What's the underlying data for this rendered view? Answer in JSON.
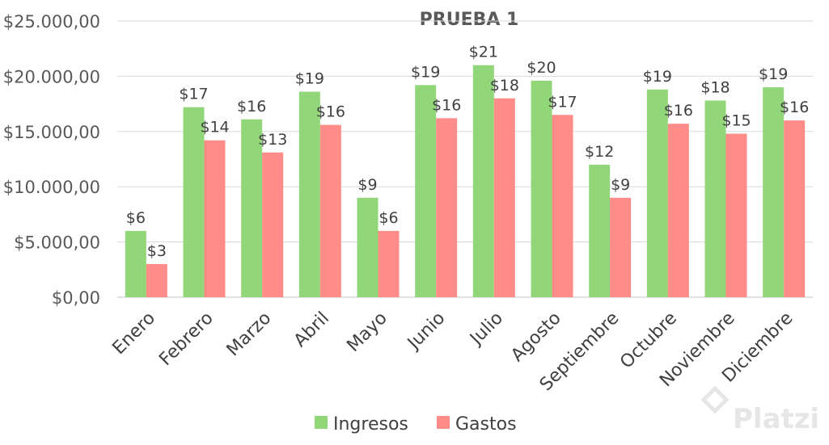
{
  "chart_data": {
    "type": "bar",
    "title": "PRUEBA 1",
    "categories": [
      "Enero",
      "Febrero",
      "Marzo",
      "Abril",
      "Mayo",
      "Junio",
      "Julio",
      "Agosto",
      "Septiembre",
      "Octubre",
      "Noviembre",
      "Diciembre"
    ],
    "series": [
      {
        "name": "Ingresos",
        "color": "#92d67a",
        "values": [
          6000,
          17200,
          16100,
          18600,
          9000,
          19200,
          21000,
          19600,
          12000,
          18800,
          17800,
          19000
        ],
        "labels": [
          "$6",
          "$17",
          "$16",
          "$19",
          "$9",
          "$19",
          "$21",
          "$20",
          "$12",
          "$19",
          "$18",
          "$19"
        ]
      },
      {
        "name": "Gastos",
        "color": "#ff8c88",
        "values": [
          3000,
          14200,
          13100,
          15600,
          6000,
          16200,
          18000,
          16500,
          9000,
          15700,
          14800,
          16000
        ],
        "labels": [
          "$3",
          "$14",
          "$13",
          "$16",
          "$6",
          "$16",
          "$18",
          "$17",
          "$9",
          "$16",
          "$15",
          "$16"
        ]
      }
    ],
    "ylim": [
      0,
      25000
    ],
    "yticks": [
      0,
      5000,
      10000,
      15000,
      20000,
      25000
    ],
    "ytick_labels": [
      "$0,00",
      "$5.000,00",
      "$10.000,00",
      "$15.000,00",
      "$20.000,00",
      "$25.000,00"
    ],
    "xlabel": "",
    "ylabel": "",
    "grid": true,
    "legend_position": "bottom"
  },
  "watermark": "Platzi"
}
